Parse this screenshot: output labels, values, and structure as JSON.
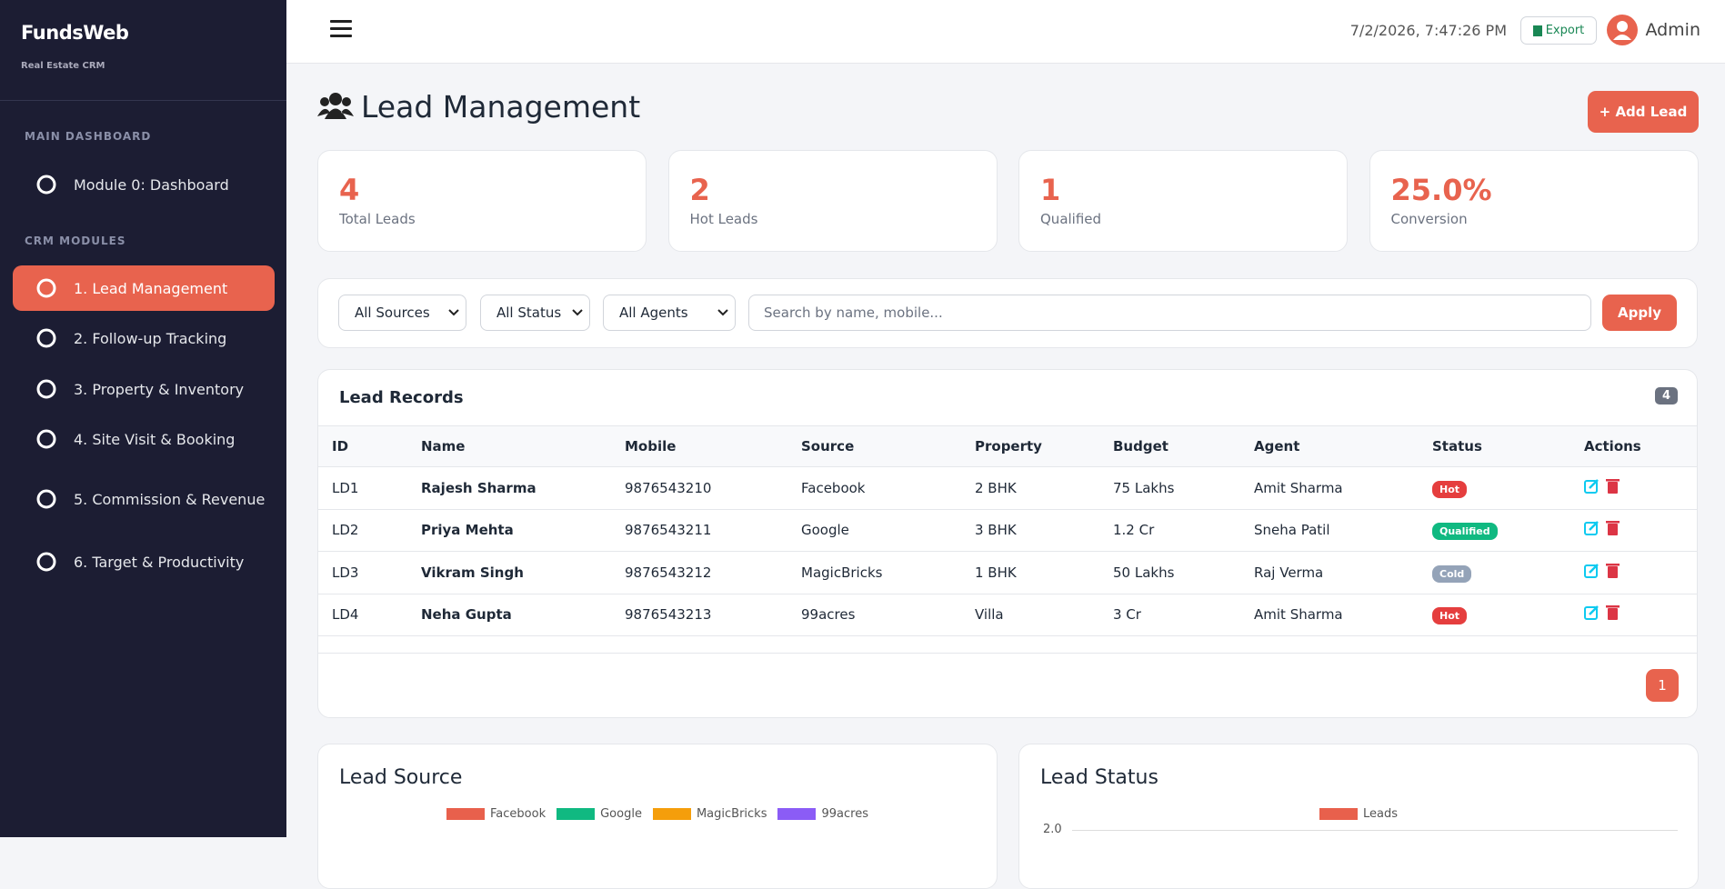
{
  "sidebar": {
    "brand": "FundsWeb",
    "tagline": "Real Estate CRM",
    "sections": [
      {
        "title": "MAIN DASHBOARD",
        "items": [
          "Module 0: Dashboard"
        ]
      },
      {
        "title": "CRM MODULES",
        "items": [
          "1. Lead Management",
          "2. Follow-up Tracking",
          "3. Property & Inventory",
          "4. Site Visit & Booking",
          "5. Commission & Revenue",
          "6. Target & Productivity"
        ]
      }
    ]
  },
  "header": {
    "datetime": "7/2/2026, 7:47:26 PM",
    "export": "Export",
    "user": "Admin"
  },
  "page": {
    "title": "Lead Management",
    "add_button": "+ Add Lead"
  },
  "stats": [
    {
      "value": 4,
      "label": "Total Leads"
    },
    {
      "value": 2,
      "label": "Hot Leads"
    },
    {
      "value": 1,
      "label": "Qualified"
    },
    {
      "value": "25.0%",
      "label": "Conversion"
    }
  ],
  "filters": {
    "selects": [
      "All Sources",
      "All Status",
      "All Agents"
    ],
    "search_placeholder": "Search by name, mobile...",
    "apply": "Apply"
  },
  "table": {
    "title": "Lead Records",
    "count": 4,
    "columns": [
      "ID",
      "Name",
      "Mobile",
      "Source",
      "Property",
      "Budget",
      "Agent",
      "Status",
      "Actions"
    ],
    "rows": [
      [
        "LD1",
        "Rajesh Sharma",
        "9876543210",
        "Facebook",
        "2 BHK",
        "75 Lakhs",
        "Amit Sharma",
        {
          "label": "Hot",
          "color": "#e53e3e"
        }
      ],
      [
        "LD2",
        "Priya Mehta",
        "9876543211",
        "Google",
        "3 BHK",
        "1.2 Cr",
        "Sneha Patil",
        {
          "label": "Qualified",
          "color": "#10b981"
        }
      ],
      [
        "LD3",
        "Vikram Singh",
        "9876543212",
        "MagicBricks",
        "1 BHK",
        "50 Lakhs",
        "Raj Verma",
        {
          "label": "Cold",
          "color": "#94a3b8"
        }
      ],
      [
        "LD4",
        "Neha Gupta",
        "9876543213",
        "99acres",
        "Villa",
        "3 Cr",
        "Amit Sharma",
        {
          "label": "Hot",
          "color": "#e53e3e"
        }
      ]
    ],
    "page": 1
  },
  "charts": [
    {
      "title": "Lead Source",
      "legend": [
        {
          "name": "Facebook",
          "color": "#e8604c"
        },
        {
          "name": "Google",
          "color": "#10b981"
        },
        {
          "name": "MagicBricks",
          "color": "#f59e0b"
        },
        {
          "name": "99acres",
          "color": "#8b5cf6"
        }
      ]
    },
    {
      "title": "Lead Status",
      "legend": [
        {
          "name": "Leads",
          "color": "#e8604c"
        }
      ],
      "yticks": [
        {
          "value": 2,
          "label": "2.0"
        }
      ]
    }
  ]
}
